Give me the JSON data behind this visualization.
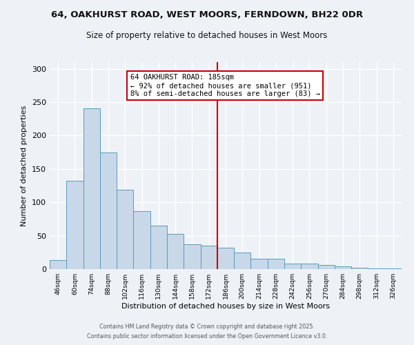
{
  "title_line1": "64, OAKHURST ROAD, WEST MOORS, FERNDOWN, BH22 0DR",
  "title_line2": "Size of property relative to detached houses in West Moors",
  "categories": [
    "46sqm",
    "60sqm",
    "74sqm",
    "88sqm",
    "102sqm",
    "116sqm",
    "130sqm",
    "144sqm",
    "158sqm",
    "172sqm",
    "186sqm",
    "200sqm",
    "214sqm",
    "228sqm",
    "242sqm",
    "256sqm",
    "270sqm",
    "284sqm",
    "298sqm",
    "312sqm",
    "326sqm"
  ],
  "values": [
    13,
    132,
    241,
    175,
    119,
    87,
    65,
    53,
    37,
    35,
    32,
    25,
    16,
    16,
    8,
    8,
    6,
    4,
    2,
    1,
    1
  ],
  "bar_color": "#c8d8e8",
  "bar_edge_color": "#5a9aba",
  "vline_color": "#cc0000",
  "annotation_title": "64 OAKHURST ROAD: 185sqm",
  "annotation_line1": "← 92% of detached houses are smaller (951)",
  "annotation_line2": "8% of semi-detached houses are larger (83) →",
  "annotation_box_edge": "#cc0000",
  "xlabel": "Distribution of detached houses by size in West Moors",
  "ylabel": "Number of detached properties",
  "ylim": [
    0,
    310
  ],
  "yticks": [
    0,
    50,
    100,
    150,
    200,
    250,
    300
  ],
  "footer_line1": "Contains HM Land Registry data © Crown copyright and database right 2025.",
  "footer_line2": "Contains public sector information licensed under the Open Government Licence v3.0.",
  "background_color": "#eef2f7",
  "grid_color": "#ffffff"
}
